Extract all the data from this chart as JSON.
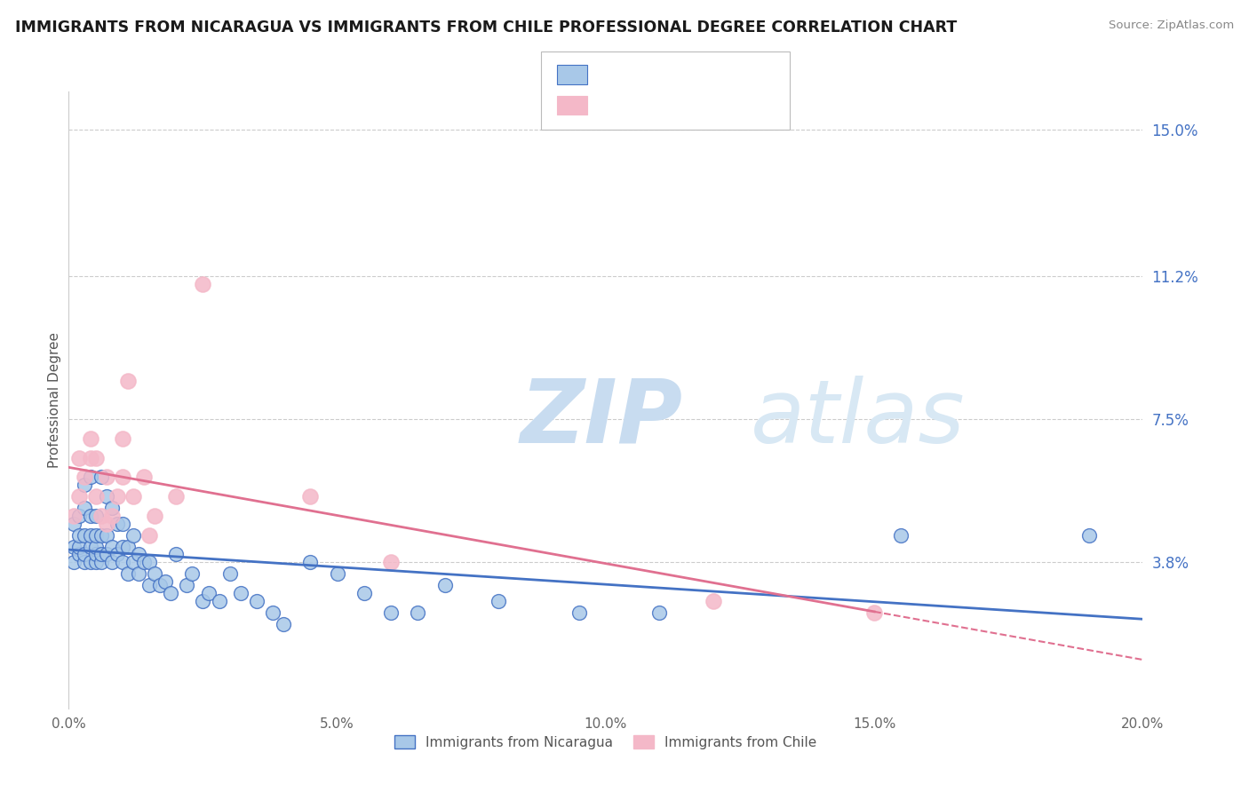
{
  "title": "IMMIGRANTS FROM NICARAGUA VS IMMIGRANTS FROM CHILE PROFESSIONAL DEGREE CORRELATION CHART",
  "source": "Source: ZipAtlas.com",
  "ylabel": "Professional Degree",
  "xlim": [
    0.0,
    0.2
  ],
  "ylim": [
    0.0,
    0.16
  ],
  "xticks": [
    0.0,
    0.05,
    0.1,
    0.15,
    0.2
  ],
  "xtick_labels": [
    "0.0%",
    "5.0%",
    "10.0%",
    "15.0%",
    "20.0%"
  ],
  "ytick_positions": [
    0.038,
    0.075,
    0.112,
    0.15
  ],
  "ytick_labels": [
    "3.8%",
    "7.5%",
    "11.2%",
    "15.0%"
  ],
  "color_nicaragua": "#a8c8e8",
  "color_chile": "#f4b8c8",
  "color_nicaragua_line": "#4472c4",
  "color_chile_line": "#e07090",
  "color_legend_text": "#4472c4",
  "color_r_value": "#4472c4",
  "watermark_zip": "ZIP",
  "watermark_atlas": "atlas",
  "watermark_color": "#c8dcf0",
  "nicaragua_x": [
    0.001,
    0.001,
    0.001,
    0.002,
    0.002,
    0.002,
    0.002,
    0.003,
    0.003,
    0.003,
    0.003,
    0.003,
    0.004,
    0.004,
    0.004,
    0.004,
    0.004,
    0.005,
    0.005,
    0.005,
    0.005,
    0.005,
    0.006,
    0.006,
    0.006,
    0.006,
    0.007,
    0.007,
    0.007,
    0.008,
    0.008,
    0.008,
    0.009,
    0.009,
    0.01,
    0.01,
    0.01,
    0.011,
    0.011,
    0.012,
    0.012,
    0.013,
    0.013,
    0.014,
    0.015,
    0.015,
    0.016,
    0.017,
    0.018,
    0.019,
    0.02,
    0.022,
    0.023,
    0.025,
    0.026,
    0.028,
    0.03,
    0.032,
    0.035,
    0.038,
    0.04,
    0.045,
    0.05,
    0.055,
    0.06,
    0.065,
    0.07,
    0.08,
    0.095,
    0.11,
    0.155,
    0.19
  ],
  "nicaragua_y": [
    0.038,
    0.042,
    0.048,
    0.04,
    0.042,
    0.045,
    0.05,
    0.038,
    0.04,
    0.045,
    0.052,
    0.058,
    0.038,
    0.042,
    0.045,
    0.05,
    0.06,
    0.038,
    0.04,
    0.042,
    0.045,
    0.05,
    0.038,
    0.04,
    0.045,
    0.06,
    0.04,
    0.045,
    0.055,
    0.038,
    0.042,
    0.052,
    0.04,
    0.048,
    0.038,
    0.042,
    0.048,
    0.035,
    0.042,
    0.038,
    0.045,
    0.035,
    0.04,
    0.038,
    0.032,
    0.038,
    0.035,
    0.032,
    0.033,
    0.03,
    0.04,
    0.032,
    0.035,
    0.028,
    0.03,
    0.028,
    0.035,
    0.03,
    0.028,
    0.025,
    0.022,
    0.038,
    0.035,
    0.03,
    0.025,
    0.025,
    0.032,
    0.028,
    0.025,
    0.025,
    0.045,
    0.045
  ],
  "chile_x": [
    0.001,
    0.002,
    0.002,
    0.003,
    0.004,
    0.004,
    0.005,
    0.005,
    0.006,
    0.007,
    0.007,
    0.008,
    0.009,
    0.01,
    0.01,
    0.011,
    0.012,
    0.014,
    0.015,
    0.016,
    0.02,
    0.025,
    0.045,
    0.06,
    0.12,
    0.15
  ],
  "chile_y": [
    0.05,
    0.055,
    0.065,
    0.06,
    0.07,
    0.065,
    0.065,
    0.055,
    0.05,
    0.048,
    0.06,
    0.05,
    0.055,
    0.06,
    0.07,
    0.085,
    0.055,
    0.06,
    0.045,
    0.05,
    0.055,
    0.11,
    0.055,
    0.038,
    0.028,
    0.025
  ]
}
